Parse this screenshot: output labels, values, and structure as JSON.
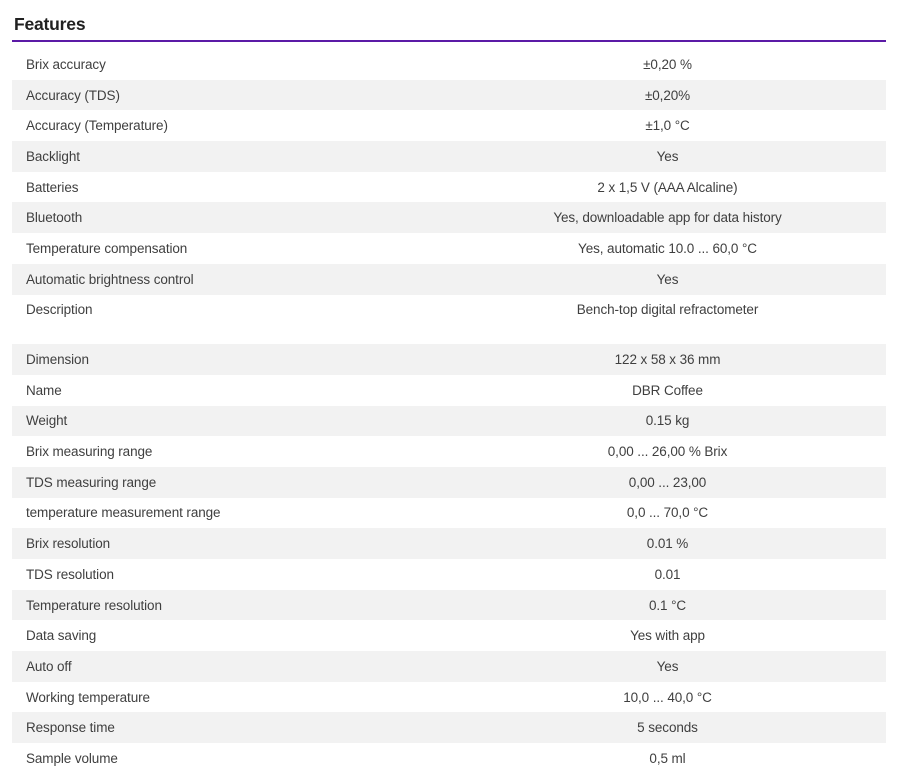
{
  "section": {
    "title": "Features"
  },
  "colors": {
    "accent": "#5b1aa6",
    "row_alt_bg": "#f2f2f2",
    "text": "#3f3f3f",
    "heading": "#212121"
  },
  "features_table": {
    "rows": [
      {
        "label": "Brix accuracy",
        "value": "±0,20 %"
      },
      {
        "label": "Accuracy (TDS)",
        "value": "±0,20%"
      },
      {
        "label": "Accuracy (Temperature)",
        "value": "±1,0 °C"
      },
      {
        "label": "Backlight",
        "value": "Yes"
      },
      {
        "label": "Batteries",
        "value": "2 x 1,5 V (AAA Alcaline)"
      },
      {
        "label": "Bluetooth",
        "value": "Yes, downloadable app for data history"
      },
      {
        "label": "Temperature compensation",
        "value": "Yes, automatic 10.0 ... 60,0 °C"
      },
      {
        "label": "Automatic brightness control",
        "value": "Yes"
      },
      {
        "label": "Description",
        "value": "Bench-top digital refractometer"
      },
      {
        "label": "Dimension",
        "value": "122 x 58 x 36 mm",
        "gap_before": true
      },
      {
        "label": "Name",
        "value": "DBR Coffee"
      },
      {
        "label": "Weight",
        "value": "0.15 kg"
      },
      {
        "label": "Brix measuring range",
        "value": "0,00 ... 26,00 % Brix"
      },
      {
        "label": "TDS measuring range",
        "value": "0,00 ... 23,00"
      },
      {
        "label": "temperature measurement range",
        "value": "0,0 ... 70,0 °C"
      },
      {
        "label": "Brix resolution",
        "value": "0.01 %"
      },
      {
        "label": "TDS resolution",
        "value": "0.01"
      },
      {
        "label": "Temperature resolution",
        "value": "0.1 °C"
      },
      {
        "label": "Data saving",
        "value": "Yes with app"
      },
      {
        "label": "Auto off",
        "value": "Yes"
      },
      {
        "label": "Working temperature",
        "value": "10,0 ... 40,0 °C"
      },
      {
        "label": "Response time",
        "value": "5 seconds"
      },
      {
        "label": "Sample volume",
        "value": "0,5 ml"
      }
    ]
  }
}
